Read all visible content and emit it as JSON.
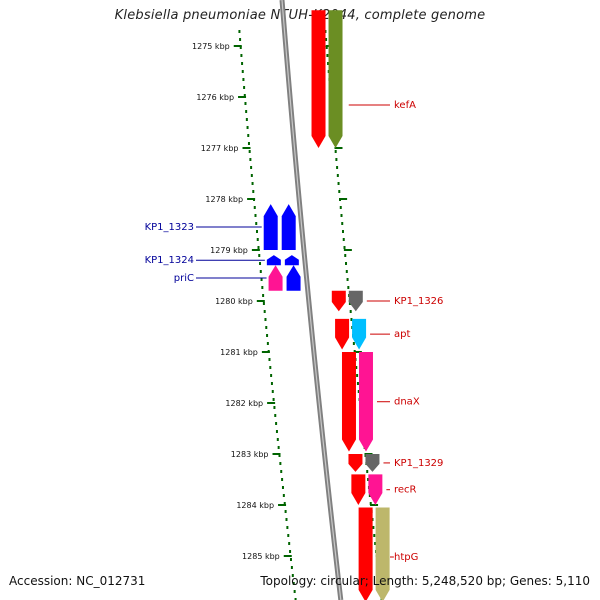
{
  "title": "Klebsiella pneumoniae NTUH-K2044, complete genome",
  "footer": {
    "accession": "Accession: NC_012731",
    "summary": "Topology: circular; Length: 5,248,520 bp; Genes: 5,110"
  },
  "axis": {
    "unit": "kbp",
    "ticks": [
      {
        "kbp": 1275,
        "label": "1275 kbp"
      },
      {
        "kbp": 1276,
        "label": "1276 kbp"
      },
      {
        "kbp": 1277,
        "label": "1277 kbp"
      },
      {
        "kbp": 1278,
        "label": "1278 kbp"
      },
      {
        "kbp": 1279,
        "label": "1279 kbp"
      },
      {
        "kbp": 1280,
        "label": "1280 kbp"
      },
      {
        "kbp": 1281,
        "label": "1281 kbp"
      },
      {
        "kbp": 1282,
        "label": "1282 kbp"
      },
      {
        "kbp": 1283,
        "label": "1283 kbp"
      },
      {
        "kbp": 1284,
        "label": "1284 kbp"
      },
      {
        "kbp": 1285,
        "label": "1285 kbp"
      }
    ]
  },
  "genes": [
    {
      "name": "kefA",
      "strand": "forward",
      "start": 1274.3,
      "end": 1277.0,
      "color": "#6b8e23"
    },
    {
      "name": "KP1_1323",
      "strand": "reverse",
      "start": 1278.1,
      "end": 1279.0,
      "color": "#0000ff"
    },
    {
      "name": "KP1_1324",
      "strand": "reverse",
      "start": 1279.1,
      "end": 1279.3,
      "color": "#0000ff"
    },
    {
      "name": "priC",
      "strand": "reverse",
      "start": 1279.3,
      "end": 1279.8,
      "color": "#ff1493"
    },
    {
      "name": "KP1_1326",
      "strand": "forward",
      "start": 1279.8,
      "end": 1280.2,
      "color": "#666666"
    },
    {
      "name": "apt",
      "strand": "forward",
      "start": 1280.35,
      "end": 1280.95,
      "color": "#00bfff"
    },
    {
      "name": "dnaX",
      "strand": "forward",
      "start": 1281.0,
      "end": 1282.95,
      "color": "#ff1493"
    },
    {
      "name": "KP1_1329",
      "strand": "forward",
      "start": 1283.0,
      "end": 1283.35,
      "color": "#666666"
    },
    {
      "name": "recR",
      "strand": "forward",
      "start": 1283.4,
      "end": 1284.0,
      "color": "#ff1493"
    },
    {
      "name": "htpG",
      "strand": "forward",
      "start": 1284.05,
      "end": 1285.9,
      "color": "#bdb76b"
    }
  ],
  "legend_colors": {
    "forward_label": "#cc0000",
    "reverse_label": "#000099",
    "cds_backbone": "#ff0000",
    "tick": "#006400",
    "dna_line": "#808080"
  }
}
